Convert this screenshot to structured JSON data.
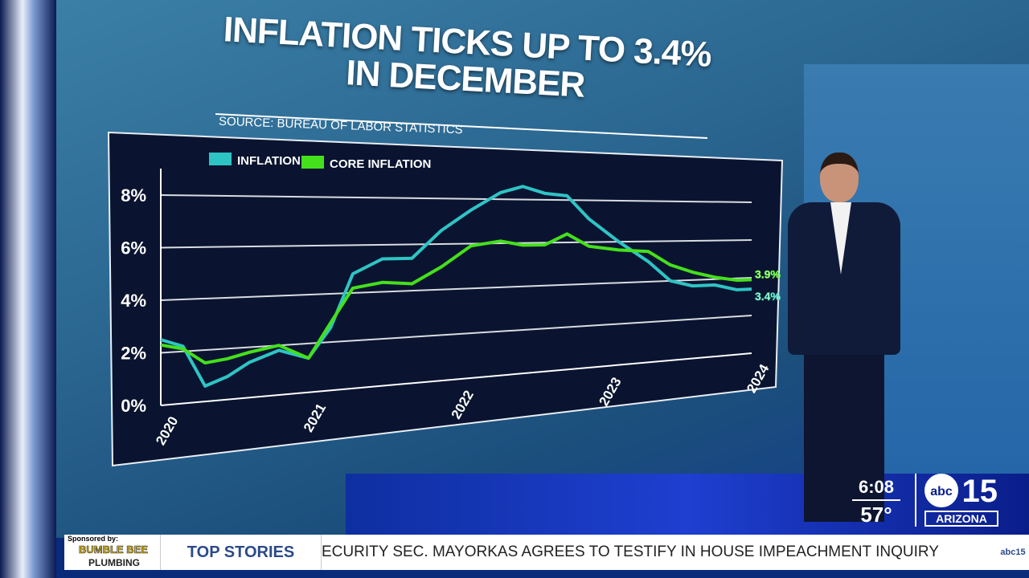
{
  "graphic": {
    "title_line1": "INFLATION TICKS UP TO 3.4%",
    "title_line2": "IN DECEMBER",
    "source": "SOURCE: BUREAU OF LABOR STATISTICS"
  },
  "chart_data": {
    "type": "line",
    "title": "INFLATION TICKS UP TO 3.4% IN DECEMBER",
    "xlabel": "",
    "ylabel": "",
    "xlim": [
      2020,
      2024
    ],
    "ylim": [
      0,
      9.5
    ],
    "x_ticks": [
      "2020",
      "2021",
      "2022",
      "2023",
      "2024"
    ],
    "y_ticks": [
      "0%",
      "2%",
      "4%",
      "6%",
      "8%"
    ],
    "legend": "top-left",
    "grid": true,
    "series": [
      {
        "name": "INFLATION",
        "color": "#2ec4c4",
        "x": [
          2020.0,
          2020.15,
          2020.3,
          2020.45,
          2020.6,
          2020.8,
          2021.0,
          2021.15,
          2021.3,
          2021.5,
          2021.7,
          2021.9,
          2022.1,
          2022.3,
          2022.45,
          2022.6,
          2022.75,
          2022.9,
          2023.1,
          2023.3,
          2023.45,
          2023.6,
          2023.75,
          2023.9,
          2024.0
        ],
        "values": [
          2.5,
          2.2,
          0.6,
          0.9,
          1.4,
          1.8,
          1.4,
          2.6,
          4.8,
          5.4,
          5.4,
          6.6,
          7.5,
          8.3,
          8.6,
          8.3,
          8.2,
          7.1,
          6.0,
          5.0,
          4.0,
          3.7,
          3.7,
          3.4,
          3.4
        ],
        "end_label": "3.4%"
      },
      {
        "name": "CORE INFLATION",
        "color": "#44e01c",
        "x": [
          2020.0,
          2020.15,
          2020.3,
          2020.45,
          2020.6,
          2020.8,
          2021.0,
          2021.15,
          2021.3,
          2021.5,
          2021.7,
          2021.9,
          2022.1,
          2022.3,
          2022.45,
          2022.6,
          2022.75,
          2022.9,
          2023.1,
          2023.3,
          2023.45,
          2023.6,
          2023.75,
          2023.9,
          2024.0
        ],
        "values": [
          2.3,
          2.1,
          1.5,
          1.6,
          1.8,
          2.0,
          1.4,
          2.8,
          4.2,
          4.4,
          4.3,
          5.0,
          5.9,
          6.1,
          5.9,
          5.9,
          6.4,
          5.8,
          5.6,
          5.5,
          4.8,
          4.4,
          4.1,
          3.9,
          3.9
        ],
        "end_label": "3.9%"
      }
    ]
  },
  "broadcast": {
    "time": "6:08",
    "temperature": "57°",
    "logo_abc": "abc",
    "logo_number": "15",
    "logo_region": "ARIZONA"
  },
  "ticker": {
    "sponsored_by": "Sponsored by:",
    "sponsor_name_1": "BUMBLE BEE",
    "sponsor_name_2": "PLUMBING",
    "section": "TOP STORIES",
    "headline": "ECURITY SEC. MAYORKAS AGREES TO TESTIFY IN HOUSE IMPEACHMENT INQUIRY",
    "mini_logo": "abc15"
  }
}
